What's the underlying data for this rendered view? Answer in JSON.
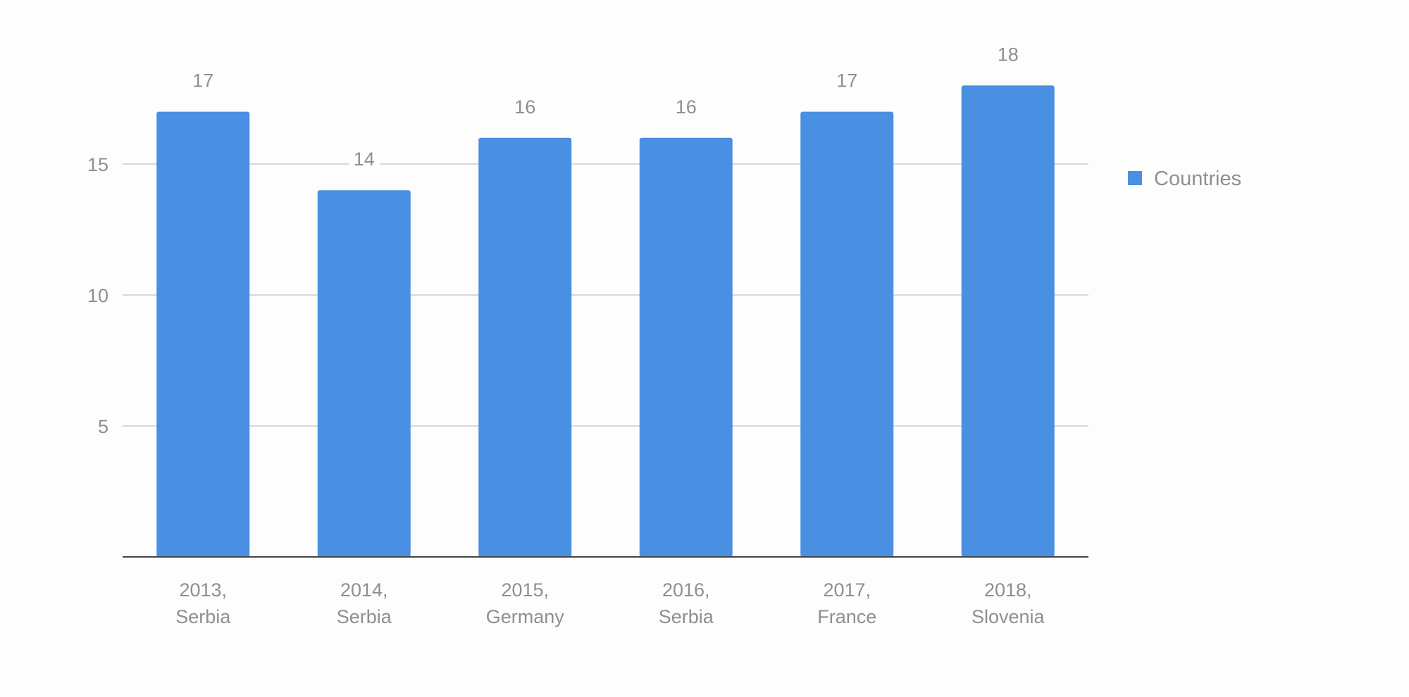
{
  "chart_data": {
    "type": "bar",
    "categories": [
      [
        "2013,",
        "Serbia"
      ],
      [
        "2014,",
        "Serbia"
      ],
      [
        "2015,",
        "Germany"
      ],
      [
        "2016,",
        "Serbia"
      ],
      [
        "2017,",
        "France"
      ],
      [
        "2018,",
        "Slovenia"
      ]
    ],
    "series": [
      {
        "name": "Countries",
        "values": [
          17,
          14,
          16,
          16,
          17,
          18
        ],
        "color": "#4a90e2"
      }
    ],
    "data_labels": [
      "17",
      "14",
      "16",
      "16",
      "17",
      "18"
    ],
    "y_ticks": [
      5,
      10,
      15
    ],
    "ylim": [
      0,
      18
    ],
    "grid": true,
    "legend_position": "right"
  }
}
